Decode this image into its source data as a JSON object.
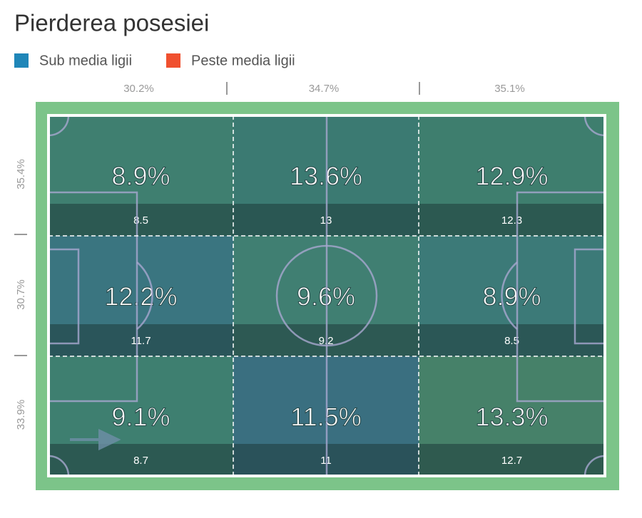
{
  "title": "Pierderea posesiei",
  "legend": [
    {
      "label": "Sub media ligii",
      "color": "#1f86b8"
    },
    {
      "label": "Peste media ligii",
      "color": "#f0502f"
    }
  ],
  "columns": [
    "30.2%",
    "34.7%",
    "35.1%"
  ],
  "rows": [
    "35.4%",
    "30.7%",
    "33.9%"
  ],
  "zones": [
    [
      {
        "label": "8.9%",
        "value": 8.5,
        "color": "#3f7f70"
      },
      {
        "label": "13.6%",
        "value": 13,
        "color": "#3b7a72"
      },
      {
        "label": "12.9%",
        "value": 12.3,
        "color": "#3e7e6e"
      }
    ],
    [
      {
        "label": "12.2%",
        "value": 11.7,
        "color": "#3a7580"
      },
      {
        "label": "9.6%",
        "value": 9.2,
        "color": "#407f72"
      },
      {
        "label": "8.9%",
        "value": 8.5,
        "color": "#3c7a78"
      }
    ],
    [
      {
        "label": "9.1%",
        "value": 8.7,
        "color": "#3e7f70"
      },
      {
        "label": "11.5%",
        "value": 11,
        "color": "#3a6f80"
      },
      {
        "label": "13.3%",
        "value": 12.7,
        "color": "#468169"
      }
    ]
  ]
}
